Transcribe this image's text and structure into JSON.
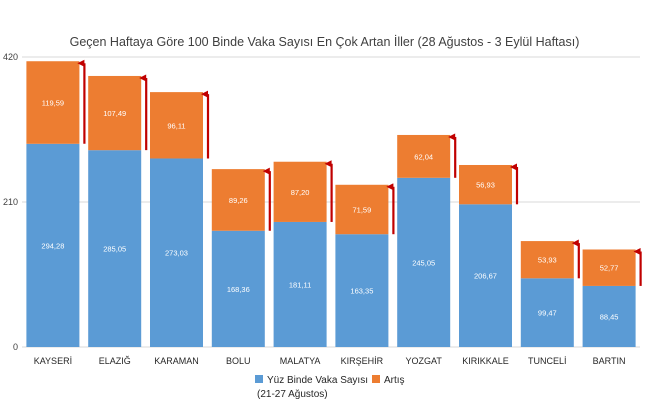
{
  "chart_data": {
    "type": "bar",
    "stacked": true,
    "title": "Geçen Haftaya Göre 100 Binde Vaka Sayısı En Çok Artan İller (28 Ağustos - 3 Eylül Haftası)",
    "categories": [
      "KAYSERİ",
      "ELAZIĞ",
      "KARAMAN",
      "BOLU",
      "MALATYA",
      "KIRŞEHİR",
      "YOZGAT",
      "KIRIKKALE",
      "TUNCELİ",
      "BARTIN"
    ],
    "series": [
      {
        "name": "Yüz Binde Vaka Sayısı (21-27 Ağustos)",
        "color": "#5b9bd5",
        "values": [
          294.28,
          285.05,
          273.03,
          168.36,
          181.11,
          163.35,
          245.05,
          206.67,
          99.47,
          88.45
        ],
        "labels": [
          "294,28",
          "285,05",
          "273,03",
          "168,36",
          "181,11",
          "163,35",
          "245,05",
          "206,67",
          "99,47",
          "88,45"
        ]
      },
      {
        "name": "Artış",
        "color": "#ed7d31",
        "values": [
          119.59,
          107.49,
          96.11,
          89.26,
          87.2,
          71.59,
          62.04,
          56.93,
          53.93,
          52.77
        ],
        "labels": [
          "119,59",
          "107,49",
          "96,11",
          "89,26",
          "87,20",
          "71,59",
          "62,04",
          "56,93",
          "53,93",
          "52,77"
        ]
      }
    ],
    "y_ticks": [
      "0",
      "210",
      "420"
    ],
    "ylim": [
      0,
      420
    ],
    "arrow_color": "#c00000",
    "grid": true,
    "legend_position": "bottom"
  },
  "legend": {
    "series1_line1": "Yüz Binde Vaka Sayısı",
    "series1_line2": "(21-27 Ağustos)",
    "series2": "Artış"
  }
}
